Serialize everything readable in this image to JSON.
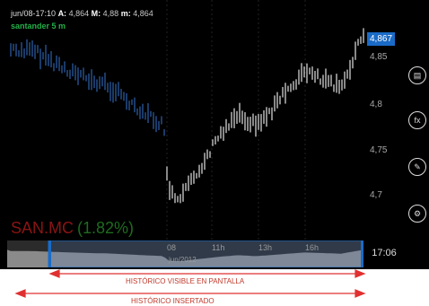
{
  "header": {
    "timestamp": "jun/08-17:10",
    "a_label": "A:",
    "a_value": "4,864",
    "max_label": "M:",
    "max_value": "4,88",
    "min_label": "m:",
    "min_value": "4,864",
    "ticker": "santander 5 m"
  },
  "symbol": {
    "code": "SAN.MC",
    "change": "(1.82%)"
  },
  "price_axis": {
    "ticks": [
      "4,85",
      "4,8",
      "4,75",
      "4,7"
    ],
    "last_price": "4,867"
  },
  "navigator": {
    "time_labels": [
      "08",
      "11h",
      "13h",
      "16h"
    ],
    "date_label": "jun/2012",
    "current_time": "17:06"
  },
  "toolbar": {
    "buttons": [
      "compare-icon",
      "fx-icon",
      "draw-icon",
      "settings-icon"
    ],
    "fx_label": "fx"
  },
  "annotations": {
    "visible_label": "HISTÓRICO VISIBLE EN PANTALLA",
    "inserted_label": "HISTÓRICO INSERTADO"
  },
  "colors": {
    "previous_session": "#2a5a9f",
    "current_session": "#d2d2d2",
    "highlight": "#1a6bc7",
    "annotation": "#e03030"
  }
}
